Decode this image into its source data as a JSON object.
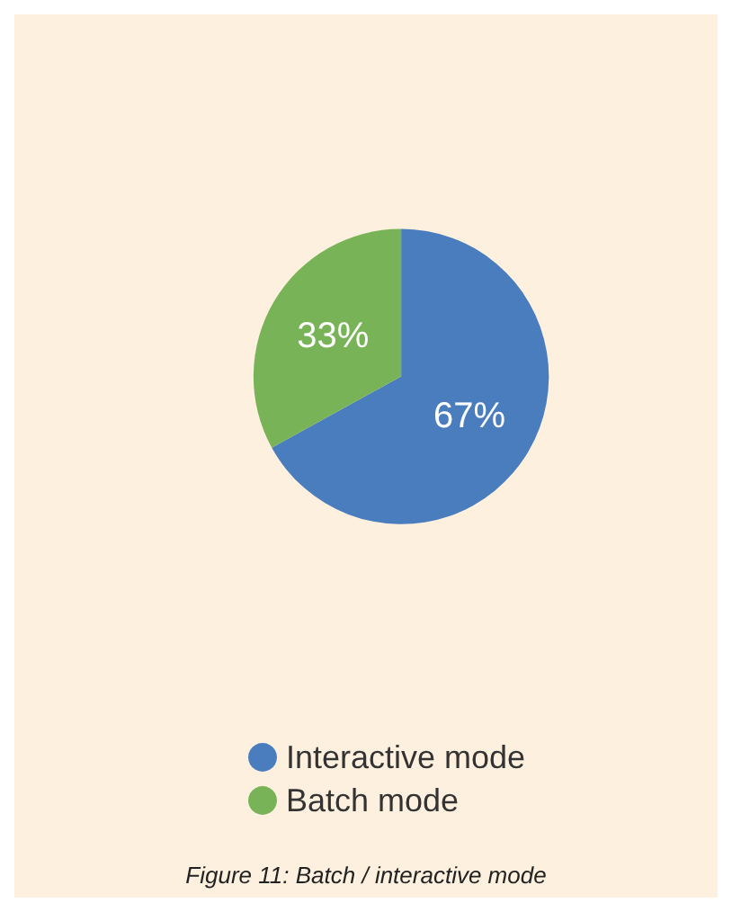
{
  "chart_data": {
    "type": "pie",
    "categories": [
      "Interactive mode",
      "Batch mode"
    ],
    "values": [
      67,
      33
    ],
    "colors": [
      "#4a7dbd",
      "#78b457"
    ],
    "value_labels": [
      "67%",
      "33%"
    ],
    "legend": "bottom",
    "annotations": [
      "Figure 11: Batch / interactive mode"
    ]
  }
}
